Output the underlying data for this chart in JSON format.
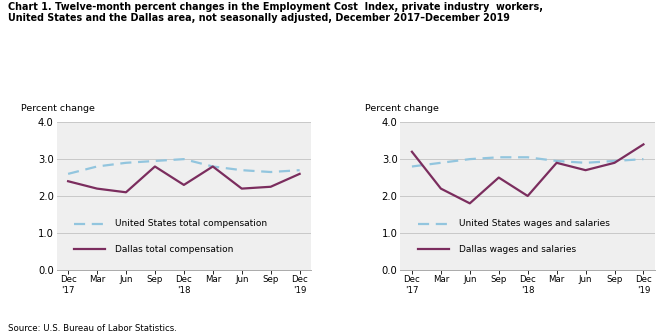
{
  "title_line1": "Chart 1. Twelve-month percent changes in the Employment Cost  Index, private industry  workers,",
  "title_line2": "United States and the Dallas area, not seasonally adjusted, December 2017–December 2019",
  "source": "Source: U.S. Bureau of Labor Statistics.",
  "x_labels": [
    "Dec\n'17",
    "Mar",
    "Jun",
    "Sep",
    "Dec\n'18",
    "Mar",
    "Jun",
    "Sep",
    "Dec\n'19"
  ],
  "chart1": {
    "us_vals": [
      2.6,
      2.8,
      2.9,
      2.95,
      3.0,
      2.8,
      2.7,
      2.65,
      2.7
    ],
    "dallas_vals": [
      2.4,
      2.2,
      2.1,
      2.8,
      2.3,
      2.8,
      2.2,
      2.25,
      2.6
    ],
    "ylabel": "Percent change",
    "legend1": "United States total compensation",
    "legend2": "Dallas total compensation"
  },
  "chart2": {
    "us_vals": [
      2.8,
      2.9,
      3.0,
      3.05,
      3.05,
      2.95,
      2.9,
      2.95,
      3.0
    ],
    "dallas_vals": [
      3.2,
      2.2,
      1.8,
      2.5,
      2.0,
      2.9,
      2.7,
      2.9,
      3.4
    ],
    "ylabel": "Percent change",
    "legend1": "United States wages and salaries",
    "legend2": "Dallas wages and salaries"
  },
  "us_color": "#92C5DE",
  "dallas_color": "#7B2D5E",
  "ylim": [
    0.0,
    4.0
  ],
  "yticks": [
    0.0,
    1.0,
    2.0,
    3.0,
    4.0
  ],
  "grid_color": "#C8C8C8",
  "bg_color": "#EFEFEF"
}
